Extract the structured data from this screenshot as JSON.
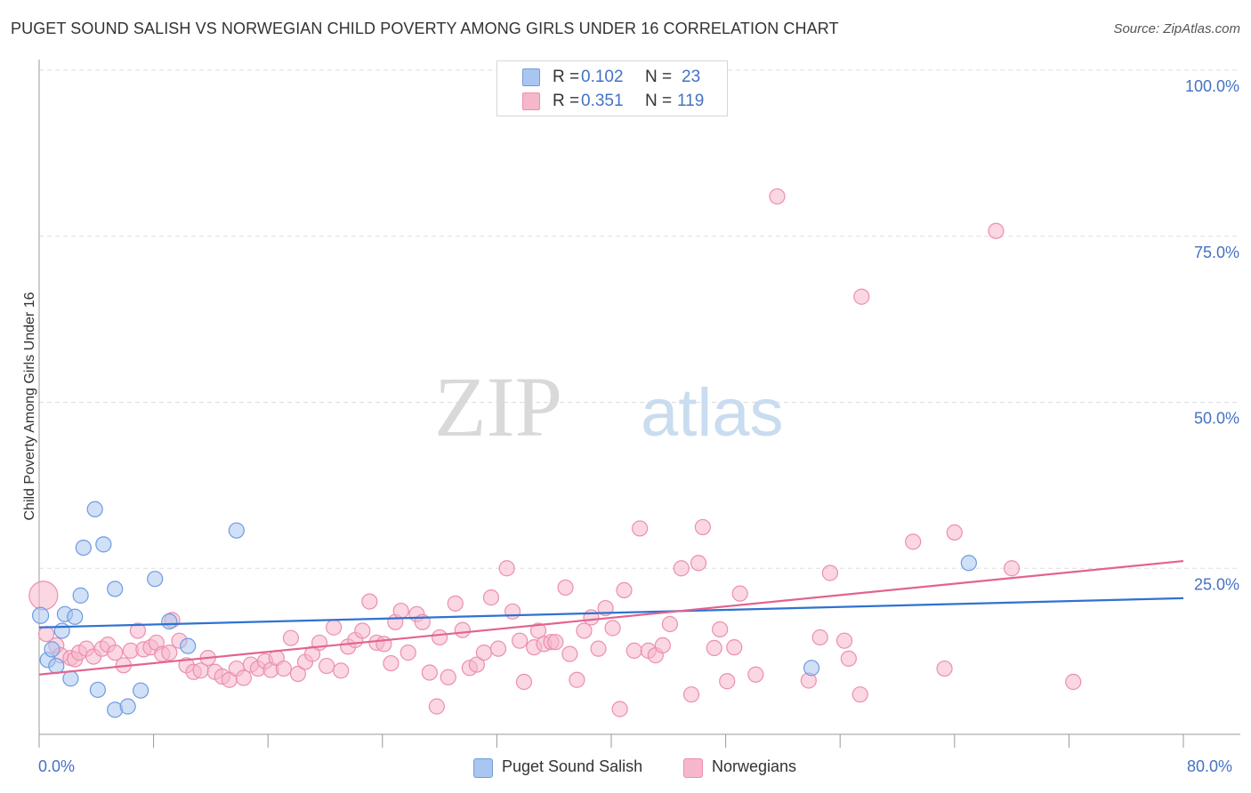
{
  "header": {
    "title": "PUGET SOUND SALISH VS NORWEGIAN CHILD POVERTY AMONG GIRLS UNDER 16 CORRELATION CHART",
    "source": "Source: ZipAtlas.com"
  },
  "watermark": {
    "part1": "ZIP",
    "part2": "atlas"
  },
  "colors": {
    "blue_fill": "#a9c6f0",
    "blue_stroke": "#6f9be0",
    "blue_line": "#2f72d1",
    "pink_fill": "#f6b7cb",
    "pink_stroke": "#ec8fae",
    "pink_line": "#e2638f",
    "tick_label": "#4472c4",
    "grid": "#dddddd",
    "axis": "#999999"
  },
  "legend_top": {
    "rows": [
      {
        "r_label": "R =",
        "r_value": "0.102",
        "n_label": "N =",
        "n_value": "23"
      },
      {
        "r_label": "R =",
        "r_value": "0.351",
        "n_label": "N =",
        "n_value": "119"
      }
    ]
  },
  "legend_bottom": {
    "series1": "Puget Sound Salish",
    "series2": "Norwegians"
  },
  "chart_data": {
    "type": "scatter",
    "title": "PUGET SOUND SALISH VS NORWEGIAN CHILD POVERTY AMONG GIRLS UNDER 16 CORRELATION CHART",
    "xlabel": "",
    "ylabel": "Child Poverty Among Girls Under 16",
    "xlim": [
      0,
      80
    ],
    "ylim": [
      0,
      100
    ],
    "x_tick_labels": [
      {
        "value": 0,
        "label": "0.0%"
      },
      {
        "value": 80,
        "label": "80.0%"
      }
    ],
    "y_tick_labels": [
      {
        "value": 25,
        "label": "25.0%"
      },
      {
        "value": 50,
        "label": "50.0%"
      },
      {
        "value": 75,
        "label": "75.0%"
      },
      {
        "value": 100,
        "label": "100.0%"
      }
    ],
    "grid": true,
    "series": [
      {
        "name": "Puget Sound Salish",
        "r": 0.102,
        "n": 23,
        "trend": {
          "x": [
            0,
            80
          ],
          "y": [
            16.1,
            20.5
          ]
        },
        "points": [
          {
            "x": 0.1,
            "y": 17.9,
            "r": 9
          },
          {
            "x": 0.6,
            "y": 11.2
          },
          {
            "x": 0.9,
            "y": 12.8
          },
          {
            "x": 1.2,
            "y": 10.3
          },
          {
            "x": 1.6,
            "y": 15.6
          },
          {
            "x": 1.8,
            "y": 18.1
          },
          {
            "x": 2.2,
            "y": 8.4
          },
          {
            "x": 2.5,
            "y": 17.7
          },
          {
            "x": 2.9,
            "y": 20.9
          },
          {
            "x": 3.1,
            "y": 28.1
          },
          {
            "x": 3.9,
            "y": 33.9
          },
          {
            "x": 4.1,
            "y": 6.7
          },
          {
            "x": 4.5,
            "y": 28.6
          },
          {
            "x": 5.3,
            "y": 3.7
          },
          {
            "x": 5.3,
            "y": 21.9
          },
          {
            "x": 6.2,
            "y": 4.2
          },
          {
            "x": 7.1,
            "y": 6.6
          },
          {
            "x": 8.1,
            "y": 23.4
          },
          {
            "x": 9.1,
            "y": 17.0
          },
          {
            "x": 10.4,
            "y": 13.3
          },
          {
            "x": 13.8,
            "y": 30.7
          },
          {
            "x": 54.0,
            "y": 10.0
          },
          {
            "x": 65.0,
            "y": 25.8
          }
        ]
      },
      {
        "name": "Norwegians",
        "r": 0.351,
        "n": 119,
        "trend": {
          "x": [
            0,
            80
          ],
          "y": [
            9.0,
            26.1
          ]
        },
        "points": [
          {
            "x": 0.3,
            "y": 20.9,
            "r": 16
          },
          {
            "x": 0.5,
            "y": 15.1
          },
          {
            "x": 1.2,
            "y": 13.4
          },
          {
            "x": 1.5,
            "y": 11.9
          },
          {
            "x": 2.2,
            "y": 11.5
          },
          {
            "x": 2.5,
            "y": 11.3
          },
          {
            "x": 2.8,
            "y": 12.3
          },
          {
            "x": 3.3,
            "y": 12.9
          },
          {
            "x": 3.8,
            "y": 11.7
          },
          {
            "x": 4.4,
            "y": 12.9
          },
          {
            "x": 4.8,
            "y": 13.5
          },
          {
            "x": 5.3,
            "y": 12.3
          },
          {
            "x": 5.9,
            "y": 10.4
          },
          {
            "x": 6.4,
            "y": 12.6
          },
          {
            "x": 6.9,
            "y": 15.6
          },
          {
            "x": 7.3,
            "y": 12.8
          },
          {
            "x": 7.8,
            "y": 13.1
          },
          {
            "x": 8.2,
            "y": 13.8
          },
          {
            "x": 8.6,
            "y": 12.1
          },
          {
            "x": 9.1,
            "y": 12.3
          },
          {
            "x": 9.3,
            "y": 17.2
          },
          {
            "x": 9.8,
            "y": 14.1
          },
          {
            "x": 10.3,
            "y": 10.4
          },
          {
            "x": 10.8,
            "y": 9.4
          },
          {
            "x": 11.3,
            "y": 9.6
          },
          {
            "x": 11.8,
            "y": 11.5
          },
          {
            "x": 12.3,
            "y": 9.4
          },
          {
            "x": 12.8,
            "y": 8.7
          },
          {
            "x": 13.3,
            "y": 8.2
          },
          {
            "x": 13.8,
            "y": 9.9
          },
          {
            "x": 14.3,
            "y": 8.5
          },
          {
            "x": 14.8,
            "y": 10.5
          },
          {
            "x": 15.3,
            "y": 9.9
          },
          {
            "x": 15.8,
            "y": 11.0
          },
          {
            "x": 16.2,
            "y": 9.7
          },
          {
            "x": 16.6,
            "y": 11.5
          },
          {
            "x": 17.1,
            "y": 9.9
          },
          {
            "x": 17.6,
            "y": 14.5
          },
          {
            "x": 18.1,
            "y": 9.1
          },
          {
            "x": 18.6,
            "y": 10.9
          },
          {
            "x": 19.1,
            "y": 12.1
          },
          {
            "x": 19.6,
            "y": 13.8
          },
          {
            "x": 20.1,
            "y": 10.3
          },
          {
            "x": 20.6,
            "y": 16.1
          },
          {
            "x": 21.1,
            "y": 9.6
          },
          {
            "x": 21.6,
            "y": 13.2
          },
          {
            "x": 22.1,
            "y": 14.2
          },
          {
            "x": 22.6,
            "y": 15.6
          },
          {
            "x": 23.1,
            "y": 20.0
          },
          {
            "x": 23.6,
            "y": 13.8
          },
          {
            "x": 24.1,
            "y": 13.6
          },
          {
            "x": 24.6,
            "y": 10.7
          },
          {
            "x": 24.9,
            "y": 16.9
          },
          {
            "x": 25.3,
            "y": 18.6
          },
          {
            "x": 25.8,
            "y": 12.3
          },
          {
            "x": 26.4,
            "y": 18.1
          },
          {
            "x": 26.8,
            "y": 16.9
          },
          {
            "x": 27.3,
            "y": 9.3
          },
          {
            "x": 27.8,
            "y": 4.2
          },
          {
            "x": 28.0,
            "y": 14.6
          },
          {
            "x": 28.6,
            "y": 8.6
          },
          {
            "x": 29.1,
            "y": 19.7
          },
          {
            "x": 29.6,
            "y": 15.7
          },
          {
            "x": 30.1,
            "y": 10.0
          },
          {
            "x": 30.6,
            "y": 10.5
          },
          {
            "x": 31.1,
            "y": 12.3
          },
          {
            "x": 31.6,
            "y": 20.6
          },
          {
            "x": 32.1,
            "y": 12.9
          },
          {
            "x": 32.7,
            "y": 25.0
          },
          {
            "x": 33.1,
            "y": 18.5
          },
          {
            "x": 33.6,
            "y": 14.1
          },
          {
            "x": 33.9,
            "y": 7.9
          },
          {
            "x": 34.6,
            "y": 13.1
          },
          {
            "x": 34.9,
            "y": 15.6
          },
          {
            "x": 35.3,
            "y": 13.6
          },
          {
            "x": 35.8,
            "y": 13.9
          },
          {
            "x": 36.1,
            "y": 13.9
          },
          {
            "x": 36.8,
            "y": 22.1
          },
          {
            "x": 37.1,
            "y": 12.1
          },
          {
            "x": 37.6,
            "y": 8.2
          },
          {
            "x": 38.1,
            "y": 15.6
          },
          {
            "x": 38.6,
            "y": 17.6
          },
          {
            "x": 39.1,
            "y": 12.9
          },
          {
            "x": 39.6,
            "y": 19.0
          },
          {
            "x": 40.1,
            "y": 16.0
          },
          {
            "x": 40.6,
            "y": 3.8
          },
          {
            "x": 40.9,
            "y": 21.7
          },
          {
            "x": 41.6,
            "y": 12.6
          },
          {
            "x": 42.0,
            "y": 31.0
          },
          {
            "x": 42.6,
            "y": 12.6
          },
          {
            "x": 43.1,
            "y": 11.9
          },
          {
            "x": 43.6,
            "y": 13.4
          },
          {
            "x": 44.1,
            "y": 16.6
          },
          {
            "x": 44.9,
            "y": 25.0
          },
          {
            "x": 45.6,
            "y": 6.0
          },
          {
            "x": 46.1,
            "y": 25.8
          },
          {
            "x": 46.4,
            "y": 31.2
          },
          {
            "x": 47.2,
            "y": 13.0
          },
          {
            "x": 47.6,
            "y": 15.8
          },
          {
            "x": 48.1,
            "y": 8.0
          },
          {
            "x": 48.6,
            "y": 13.1
          },
          {
            "x": 49.0,
            "y": 21.2
          },
          {
            "x": 50.1,
            "y": 9.0
          },
          {
            "x": 51.6,
            "y": 81.0
          },
          {
            "x": 53.8,
            "y": 8.1
          },
          {
            "x": 54.6,
            "y": 14.6
          },
          {
            "x": 55.3,
            "y": 24.3
          },
          {
            "x": 56.3,
            "y": 14.1
          },
          {
            "x": 56.6,
            "y": 11.4
          },
          {
            "x": 57.4,
            "y": 6.0
          },
          {
            "x": 57.5,
            "y": 65.9
          },
          {
            "x": 61.1,
            "y": 29.0
          },
          {
            "x": 63.3,
            "y": 9.9
          },
          {
            "x": 64.0,
            "y": 30.4
          },
          {
            "x": 66.9,
            "y": 75.8
          },
          {
            "x": 68.0,
            "y": 25.0
          },
          {
            "x": 72.3,
            "y": 7.9
          }
        ]
      }
    ]
  }
}
